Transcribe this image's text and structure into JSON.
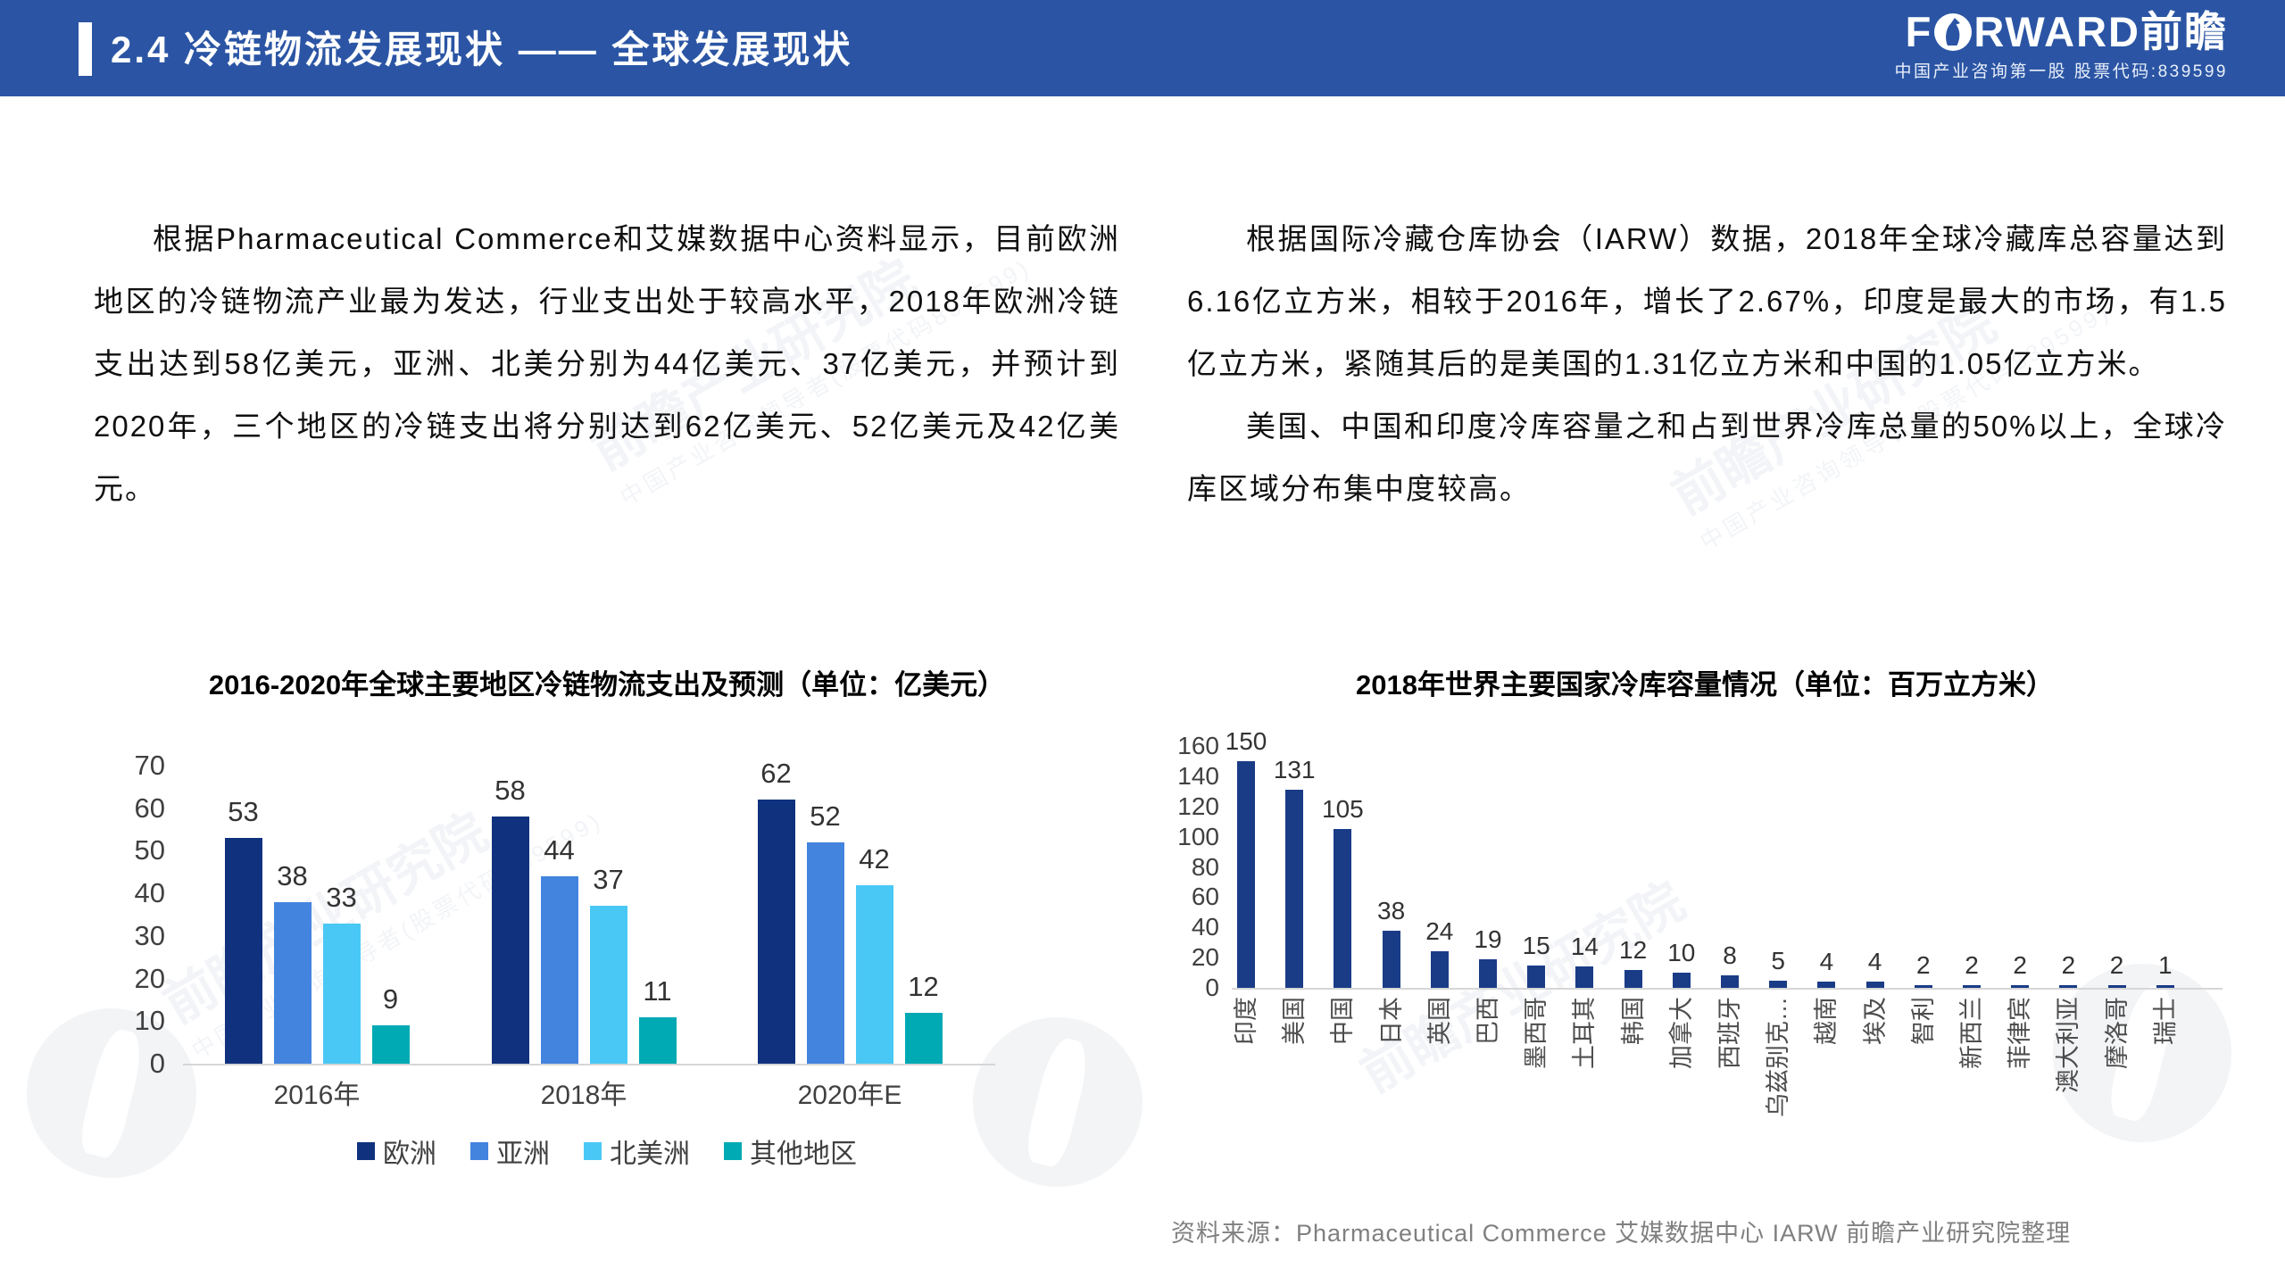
{
  "header": {
    "title": "2.4 冷链物流发展现状 —— 全球发展现状",
    "bg_color": "#2B55A4",
    "logo": {
      "en_f": "F",
      "en_rest": "RWARD",
      "cn": "前瞻",
      "subtitle": "中国产业咨询第一股 股票代码:839599"
    }
  },
  "left_text": {
    "paragraph": "根据Pharmaceutical Commerce和艾媒数据中心资料显示，目前欧洲地区的冷链物流产业最为发达，行业支出处于较高水平，2018年欧洲冷链支出达到58亿美元，亚洲、北美分别为44亿美元、37亿美元，并预计到2020年，三个地区的冷链支出将分别达到62亿美元、52亿美元及42亿美元。"
  },
  "right_text": {
    "paragraph1": "根据国际冷藏仓库协会（IARW）数据，2018年全球冷藏库总容量达到6.16亿立方米，相较于2016年，增长了2.67%，印度是最大的市场，有1.5亿立方米，紧随其后的是美国的1.31亿立方米和中国的1.05亿立方米。",
    "paragraph2": "美国、中国和印度冷库容量之和占到世界冷库总量的50%以上，全球冷库区域分布集中度较高。"
  },
  "watermark": {
    "line1": "前瞻产业研究院",
    "line2": "中国产业咨询领导者(股票代码839599)"
  },
  "source_note": "资料来源：Pharmaceutical Commerce 艾媒数据中心 IARW 前瞻产业研究院整理",
  "chart_data": [
    {
      "type": "bar",
      "title": "2016-2020年全球主要地区冷链物流支出及预测（单位：亿美元）",
      "categories": [
        "2016年",
        "2018年",
        "2020年E"
      ],
      "series": [
        {
          "name": "欧洲",
          "color": "#10327E",
          "values": [
            53,
            58,
            62
          ]
        },
        {
          "name": "亚洲",
          "color": "#4384DE",
          "values": [
            38,
            44,
            52
          ]
        },
        {
          "name": "北美洲",
          "color": "#4AC8F5",
          "values": [
            33,
            37,
            42
          ]
        },
        {
          "name": "其他地区",
          "color": "#00AAB4",
          "values": [
            9,
            11,
            12
          ]
        }
      ],
      "xlabel": "",
      "ylabel": "",
      "ylim": [
        0,
        70
      ],
      "ytick_step": 10,
      "grid": false,
      "legend_position": "bottom"
    },
    {
      "type": "bar",
      "title": "2018年世界主要国家冷库容量情况（单位：百万立方米）",
      "categories": [
        "印度",
        "美国",
        "中国",
        "日本",
        "英国",
        "巴西",
        "墨西哥",
        "土耳其",
        "韩国",
        "加拿大",
        "西班牙",
        "乌兹别克…",
        "越南",
        "埃及",
        "智利",
        "新西兰",
        "菲律宾",
        "澳大利亚",
        "摩洛哥",
        "瑞士"
      ],
      "values": [
        150,
        131,
        105,
        38,
        24,
        19,
        15,
        14,
        12,
        10,
        8,
        5,
        4,
        4,
        2,
        2,
        2,
        2,
        2,
        1
      ],
      "color": "#1A3C87",
      "xlabel": "",
      "ylabel": "",
      "ylim": [
        0,
        160
      ],
      "ytick_step": 20,
      "grid": false,
      "legend_position": "none"
    }
  ]
}
